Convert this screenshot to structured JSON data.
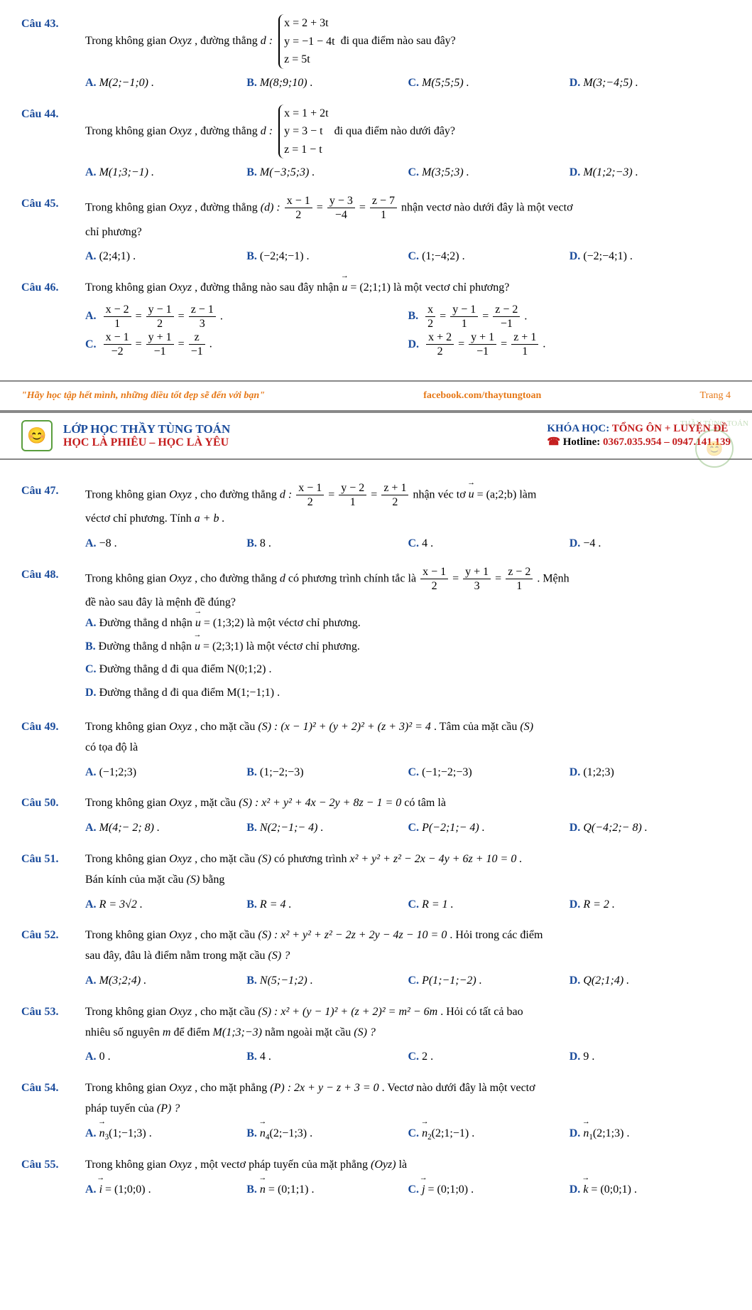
{
  "q43": {
    "n": "Câu 43.",
    "t1": "Trong không gian ",
    "oxyz": "Oxyz",
    "t2": " , đường thẳng ",
    "d": "d : ",
    "s1": "x = 2 + 3t",
    "s2": "y = −1 − 4t",
    "s3": "z = 5t",
    "t3": " đi qua điểm nào sau đây?",
    "a": "M(2;−1;0) .",
    "b": "M(8;9;10) .",
    "c": "M(5;5;5) .",
    "dd": "M(3;−4;5) ."
  },
  "q44": {
    "n": "Câu 44.",
    "t1": "Trong không gian ",
    "t2": " , đường thẳng ",
    "s1": "x = 1 + 2t",
    "s2": "y = 3 − t",
    "s3": "z = 1 − t",
    "t3": " đi qua điểm nào dưới đây?",
    "a": "M(1;3;−1) .",
    "b": "M(−3;5;3) .",
    "c": "M(3;5;3) .",
    "dd": "M(1;2;−3) ."
  },
  "q45": {
    "n": "Câu 45.",
    "t1": "Trong không gian ",
    "t2": " , đường thẳng ",
    "d": "(d) : ",
    "f1n": "x − 1",
    "f1d": "2",
    "f2n": "y − 3",
    "f2d": "−4",
    "f3n": "z − 7",
    "f3d": "1",
    "t3": " nhận vectơ nào dưới đây là một vectơ",
    "t4": "chỉ phương?",
    "a": "(2;4;1) .",
    "b": "(−2;4;−1) .",
    "c": "(1;−4;2) .",
    "dd": "(−2;−4;1) ."
  },
  "q46": {
    "n": "Câu 46.",
    "t1": "Trong không gian ",
    "t2": " , đường thẳng nào sau đây nhận ",
    "u": "u",
    "uv": " = (2;1;1)",
    "t3": " là một vectơ chỉ phương?",
    "a1n": "x − 2",
    "a1d": "1",
    "a2n": "y − 1",
    "a2d": "2",
    "a3n": "z − 1",
    "a3d": "3",
    "b1n": "x",
    "b1d": "2",
    "b2n": "y − 1",
    "b2d": "1",
    "b3n": "z − 2",
    "b3d": "−1",
    "c1n": "x − 1",
    "c1d": "−2",
    "c2n": "y + 1",
    "c2d": "−1",
    "c3n": "z",
    "c3d": "−1",
    "d1n": "x + 2",
    "d1d": "2",
    "d2n": "y + 1",
    "d2d": "−1",
    "d3n": "z + 1",
    "d3d": "1"
  },
  "ft": {
    "q": "\"Hãy học tập hết mình, những điều tốt đẹp sẽ đến với bạn\"",
    "fb": "facebook.com/thaytungtoan",
    "p": "Trang 4"
  },
  "hd": {
    "l1": "LỚP HỌC THẦY TÙNG TOÁN",
    "l2": "HỌC LÀ PHIÊU – HỌC LÀ YÊU",
    "k1": "KHÓA HỌC: ",
    "k2": "TỔNG ÔN + LUYỆN ĐỀ",
    "ph": "☎",
    "hl": "Hotline: ",
    "hn": "0367.035.954 – 0947.141.139"
  },
  "q47": {
    "n": "Câu 47.",
    "t1": "Trong không gian ",
    "t2": " , cho đường thẳng ",
    "d": "d : ",
    "f1n": "x − 1",
    "f1d": "2",
    "f2n": "y − 2",
    "f2d": "1",
    "f3n": "z + 1",
    "f3d": "2",
    "t3": " nhận véc tơ ",
    "u": "u",
    "uv": " = (a;2;b)",
    "t4": " làm",
    "t5": "véctơ chỉ phương. Tính ",
    "ab": "a + b .",
    "a": "−8 .",
    "b": "8 .",
    "c": "4 .",
    "dd": "−4 ."
  },
  "q48": {
    "n": "Câu 48.",
    "t1": "Trong không gian ",
    "t2": " , cho đường thẳng ",
    "dv": "d",
    "t3": " có phương trình chính tắc là ",
    "f1n": "x − 1",
    "f1d": "2",
    "f2n": "y + 1",
    "f2d": "3",
    "f3n": "z − 2",
    "f3d": "1",
    "t4": " . Mệnh",
    "t5": "đề nào sau đây là mệnh đề đúng?",
    "a": "Đường thẳng d nhận ",
    "au": "u",
    "av": " = (1;3;2)",
    "at": " là một véctơ chỉ phương.",
    "b": "Đường thẳng d nhận ",
    "bu": "u",
    "bv": " = (2;3;1)",
    "bt": " là một véctơ chỉ phương.",
    "c": "Đường thẳng d đi qua điểm N(0;1;2) .",
    "dd": "Đường thẳng d đi qua điểm M(1;−1;1) ."
  },
  "q49": {
    "n": "Câu 49.",
    "t1": "Trong không gian ",
    "t2": " , cho mặt cầu ",
    "s": "(S) : (x − 1)² + (y + 2)² + (z + 3)² = 4",
    "t3": " . Tâm của mặt cầu ",
    "ss": "(S)",
    "t4": "có tọa độ là",
    "a": "(−1;2;3)",
    "b": "(1;−2;−3)",
    "c": "(−1;−2;−3)",
    "dd": "(1;2;3)"
  },
  "q50": {
    "n": "Câu 50.",
    "t1": "Trong không gian ",
    "t2": " , mặt cầu ",
    "s": "(S) : x² + y² + 4x − 2y + 8z − 1 = 0",
    "t3": " có tâm là",
    "a": "M(4;− 2; 8) .",
    "b": "N(2;−1;− 4) .",
    "c": "P(−2;1;− 4) .",
    "dd": "Q(−4;2;− 8) ."
  },
  "q51": {
    "n": "Câu 51.",
    "t1": "Trong không gian ",
    "t2": " , cho mặt cầu ",
    "s": "(S)",
    "t3": " có phương trình ",
    "eq": "x² + y² + z² − 2x − 4y + 6z + 10 = 0 .",
    "t4": "Bán kính của mặt cầu ",
    "t5": " bằng",
    "a": "R = 3√2 .",
    "b": "R = 4 .",
    "c": "R = 1 .",
    "dd": "R = 2 ."
  },
  "q52": {
    "n": "Câu 52.",
    "t1": "Trong không gian ",
    "t2": " , cho mặt cầu ",
    "s": "(S) : x² + y² + z² − 2z + 2y − 4z − 10 = 0",
    "t3": " . Hỏi trong các điểm",
    "t4": "sau đây, đâu là điểm nằm trong mặt cầu ",
    "ss": "(S) ?",
    "a": "M(3;2;4) .",
    "b": "N(5;−1;2) .",
    "c": "P(1;−1;−2) .",
    "dd": "Q(2;1;4) ."
  },
  "q53": {
    "n": "Câu 53.",
    "t1": "Trong không gian ",
    "t2": " , cho mặt cầu ",
    "s": "(S) : x² + (y − 1)² + (z + 2)² = m² − 6m",
    "t3": " . Hỏi có tất cả bao",
    "t4": "nhiêu số nguyên ",
    "m": "m",
    "t5": " để điểm ",
    "pt": "M(1;3;−3)",
    "t6": " nằm ngoài mặt cầu ",
    "ss": "(S) ?",
    "a": "0 .",
    "b": "4 .",
    "c": "2 .",
    "dd": "9 ."
  },
  "q54": {
    "n": "Câu 54.",
    "t1": "Trong không gian ",
    "t2": " , cho mặt phẳng ",
    "p": "(P) : 2x + y − z + 3 = 0",
    "t3": " . Vectơ nào dưới đây là một vectơ",
    "t4": "pháp tuyến của ",
    "pp": "(P) ?",
    "a": "n",
    "as": "3",
    "av": "(1;−1;3) .",
    "b": "n",
    "bs": "4",
    "bv": "(2;−1;3) .",
    "c": "n",
    "cs": "2",
    "cv": "(2;1;−1) .",
    "dd": "n",
    "ds": "1",
    "dv": "(2;1;3) ."
  },
  "q55": {
    "n": "Câu 55.",
    "t1": "Trong không gian ",
    "t2": " , một vectơ pháp tuyến của mặt phẳng ",
    "p": "(Oyz)",
    "t3": " là",
    "a": "i",
    "av": " = (1;0;0) .",
    "b": "n",
    "bv": " = (0;1;1) .",
    "c": "j",
    "cv": " = (0;1;0) .",
    "dd": "k",
    "dv": " = (0;0;1) ."
  },
  "labels": {
    "a": "A.",
    "b": "B.",
    "c": "C.",
    "d": "D."
  }
}
